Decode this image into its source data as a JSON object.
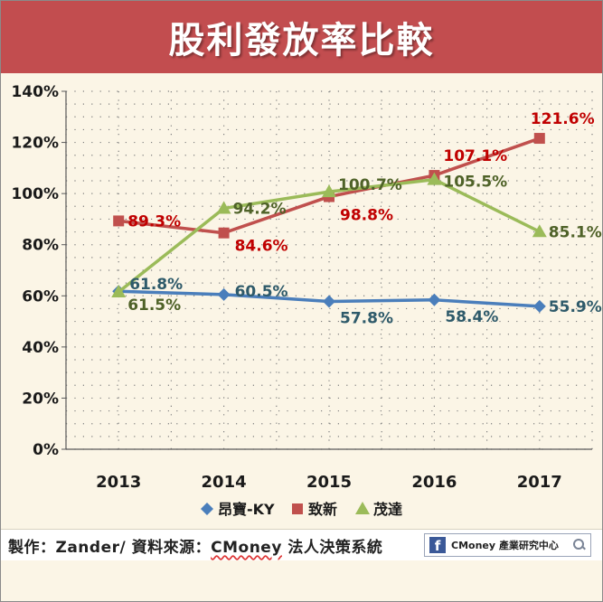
{
  "chart_data": {
    "type": "line",
    "title": "股利發放率比較",
    "categories": [
      "2013",
      "2014",
      "2015",
      "2016",
      "2017"
    ],
    "ylim": [
      0,
      140
    ],
    "yticks": [
      0,
      20,
      40,
      60,
      80,
      100,
      120,
      140
    ],
    "ytick_labels": [
      "0%",
      "20%",
      "40%",
      "60%",
      "80%",
      "100%",
      "120%",
      "140%"
    ],
    "grid": true,
    "legend_position": "bottom",
    "series": [
      {
        "name": "昂寶-KY",
        "color": "#4a7ebb",
        "marker": "diamond",
        "values": [
          61.8,
          60.5,
          57.8,
          58.4,
          55.9
        ],
        "labels": [
          "61.8%",
          "60.5%",
          "57.8%",
          "58.4%",
          "55.9%"
        ],
        "label_color": "#2e5a6a"
      },
      {
        "name": "致新",
        "color": "#c0504d",
        "marker": "square",
        "values": [
          89.3,
          84.6,
          98.8,
          107.1,
          121.6
        ],
        "labels": [
          "89.3%",
          "84.6%",
          "98.8%",
          "107.1%",
          "121.6%"
        ],
        "label_color": "#c00000"
      },
      {
        "name": "茂達",
        "color": "#9bbb59",
        "marker": "triangle",
        "values": [
          61.5,
          94.2,
          100.7,
          105.5,
          85.1
        ],
        "labels": [
          "61.5%",
          "94.2%",
          "100.7%",
          "105.5%",
          "85.1%"
        ],
        "label_color": "#4f6228"
      }
    ]
  },
  "footer": {
    "credit_prefix": "製作：Zander/ 資料來源：",
    "credit_brand": "CMoney",
    "credit_suffix": " 法人決策系統",
    "badge_icon": "f",
    "badge_text": "CMoney 產業研究中心",
    "badge_icon_name": "facebook-icon"
  }
}
